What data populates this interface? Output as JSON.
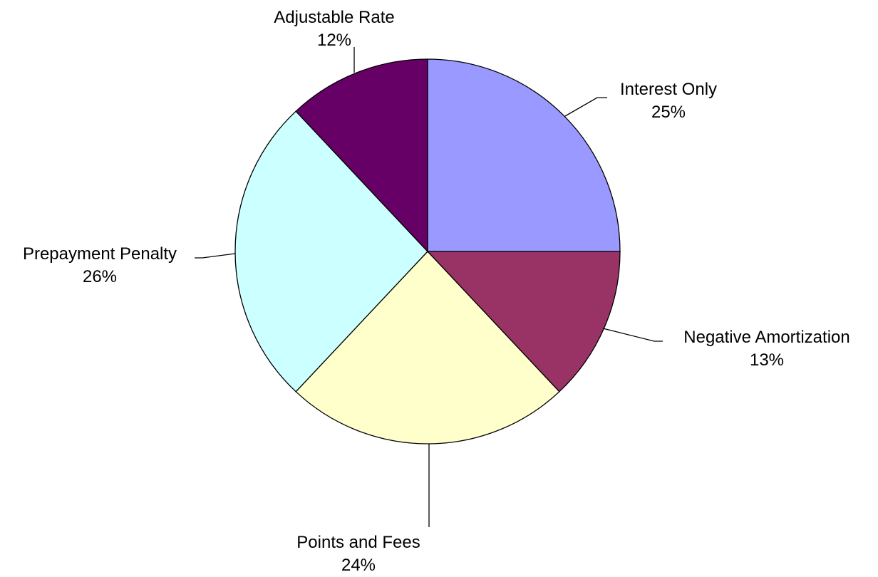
{
  "chart_data": {
    "type": "pie",
    "title": "",
    "slices": [
      {
        "label": "Interest  Only",
        "percent_label": "25%",
        "value": 25,
        "color": "#9999FF"
      },
      {
        "label": "Negative Amortization",
        "percent_label": "13%",
        "value": 13,
        "color": "#993366"
      },
      {
        "label": "Points and Fees",
        "percent_label": "24%",
        "value": 24,
        "color": "#FFFFCC"
      },
      {
        "label": "Prepayment  Penalty",
        "percent_label": "26%",
        "value": 26,
        "color": "#CCFFFF"
      },
      {
        "label": "Adjustable Rate",
        "percent_label": "12%",
        "value": 12,
        "color": "#660066"
      }
    ],
    "start_angle_deg": 0,
    "direction": "clockwise",
    "legend": "none",
    "labels": "outside with leader lines"
  }
}
